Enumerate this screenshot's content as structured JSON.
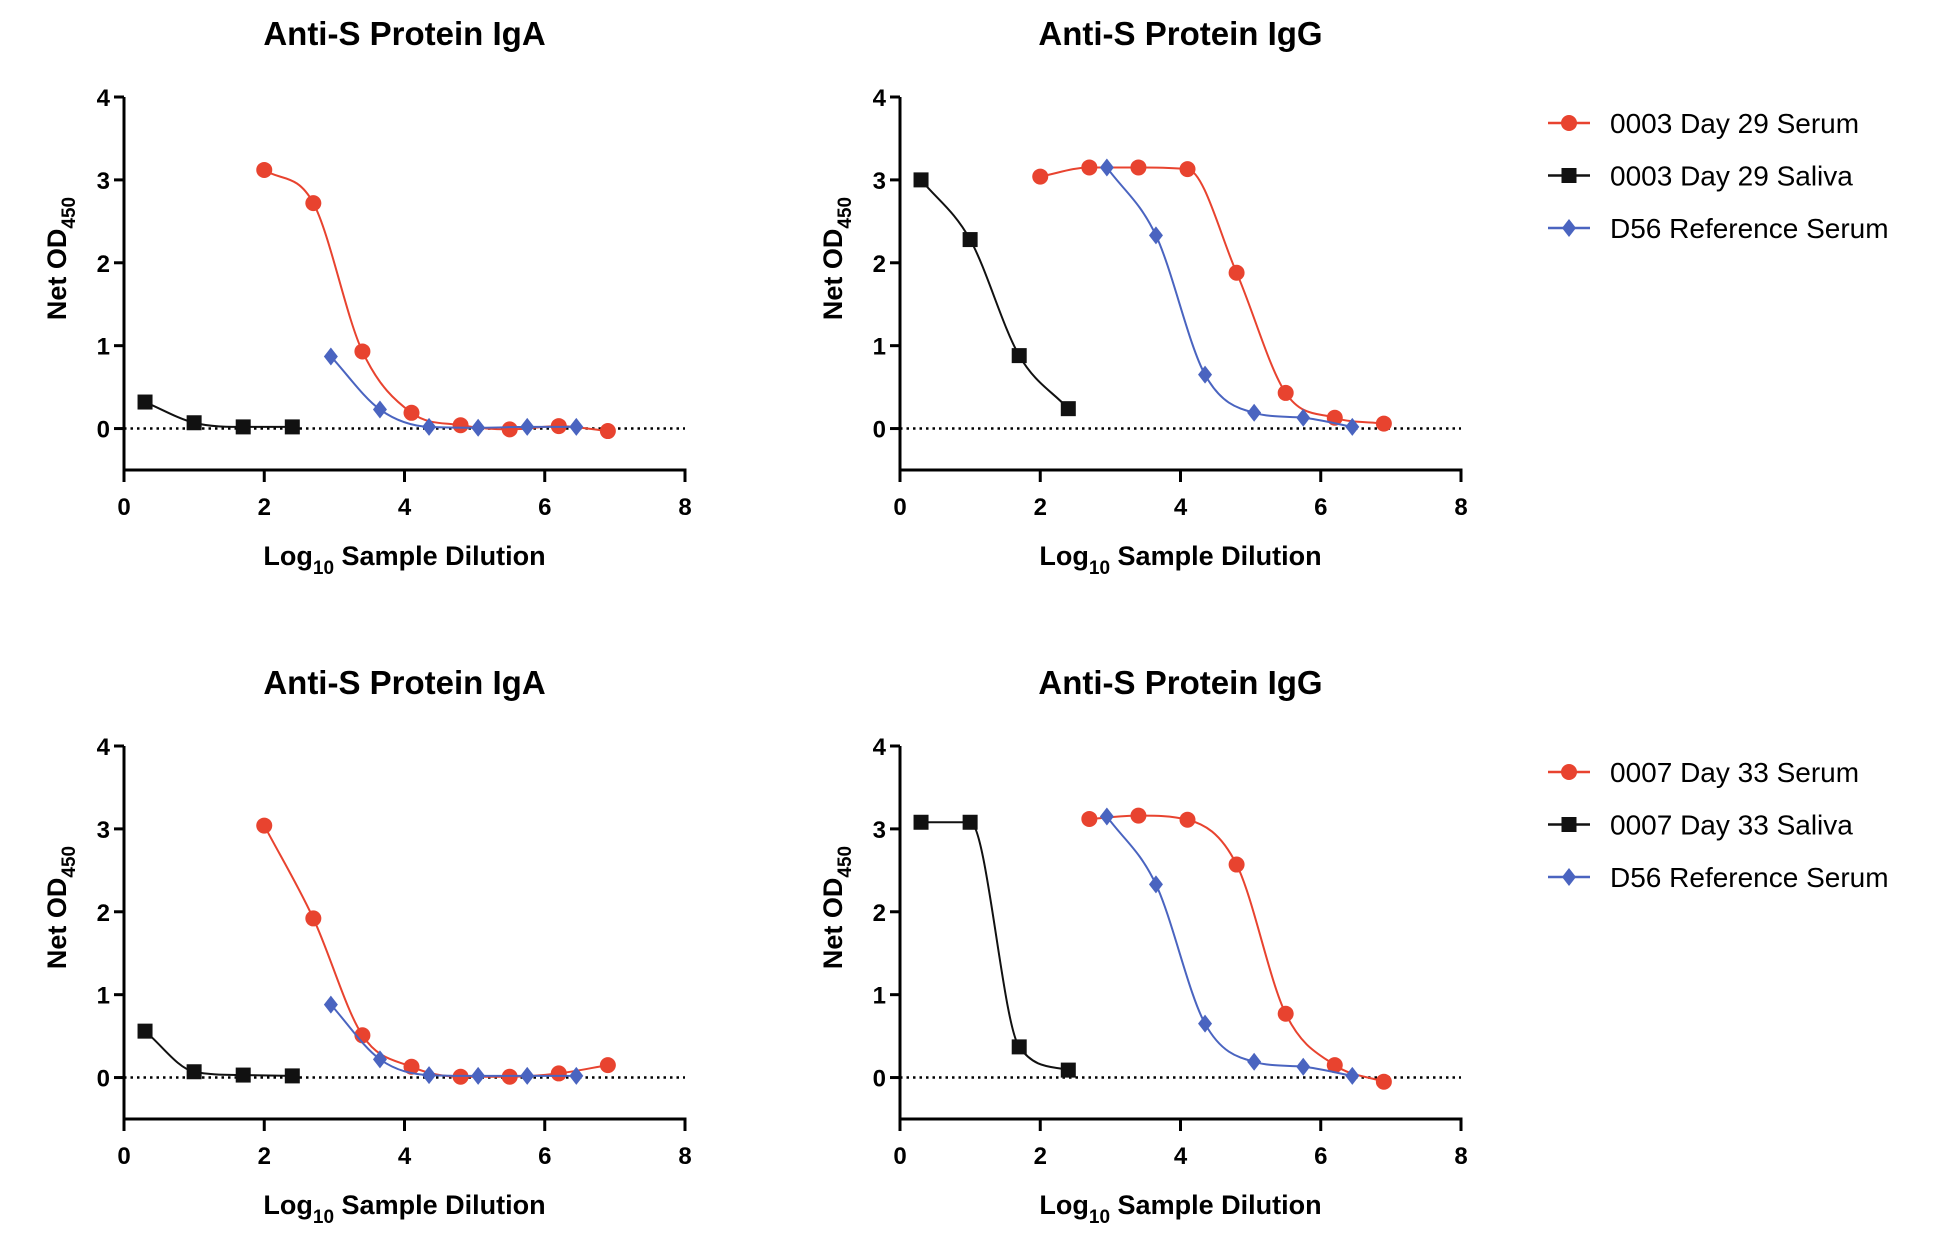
{
  "colors": {
    "serum": "#e8432f",
    "saliva": "#111111",
    "reference": "#4a64c0"
  },
  "legends": [
    {
      "entries": [
        {
          "label": "0003 Day 29 Serum",
          "marker": "circle",
          "color": "#e8432f"
        },
        {
          "label": "0003 Day 29 Saliva",
          "marker": "square",
          "color": "#111111"
        },
        {
          "label": "D56 Reference Serum",
          "marker": "diamond",
          "color": "#4a64c0"
        }
      ]
    },
    {
      "entries": [
        {
          "label": "0007 Day 33 Serum",
          "marker": "circle",
          "color": "#e8432f"
        },
        {
          "label": "0007 Day 33 Saliva",
          "marker": "square",
          "color": "#111111"
        },
        {
          "label": "D56 Reference Serum",
          "marker": "diamond",
          "color": "#4a64c0"
        }
      ]
    }
  ],
  "chart_data": [
    {
      "type": "line",
      "title": "Anti-S Protein IgA",
      "xlabel": "Log10 Sample Dilution",
      "xlabel_main": "Log",
      "xlabel_sub": "10",
      "xlabel_rest": " Sample Dilution",
      "ylabel": "Net OD450",
      "ylabel_main": "Net OD",
      "ylabel_sub": "450",
      "xlim": [
        0,
        8
      ],
      "ylim": [
        -0.5,
        4
      ],
      "xticks": [
        "0",
        "2",
        "4",
        "6",
        "8"
      ],
      "yticks": [
        "0",
        "1",
        "2",
        "3",
        "4"
      ],
      "baseline": 0,
      "grid": false,
      "legend": "right",
      "series": [
        {
          "name": "0003 Day 29 Serum",
          "marker": "circle",
          "color": "#e8432f",
          "x": [
            2,
            2.7,
            3.4,
            4.1,
            4.8,
            5.5,
            6.2,
            6.9
          ],
          "y": [
            3.12,
            2.72,
            0.93,
            0.19,
            0.04,
            -0.01,
            0.03,
            -0.03
          ]
        },
        {
          "name": "0003 Day 29 Saliva",
          "marker": "square",
          "color": "#111111",
          "x": [
            0.3,
            1,
            1.7,
            2.4
          ],
          "y": [
            0.32,
            0.07,
            0.02,
            0.02
          ]
        },
        {
          "name": "D56 Reference Serum",
          "marker": "diamond",
          "color": "#4a64c0",
          "x": [
            2.95,
            3.65,
            4.35,
            5.05,
            5.75,
            6.45
          ],
          "y": [
            0.87,
            0.23,
            0.02,
            0.01,
            0.02,
            0.02
          ]
        }
      ]
    },
    {
      "type": "line",
      "title": "Anti-S Protein IgG",
      "xlabel": "Log10 Sample Dilution",
      "xlabel_main": "Log",
      "xlabel_sub": "10",
      "xlabel_rest": " Sample Dilution",
      "ylabel": "Net OD450",
      "ylabel_main": "Net OD",
      "ylabel_sub": "450",
      "xlim": [
        0,
        8
      ],
      "ylim": [
        -0.5,
        4
      ],
      "xticks": [
        "0",
        "2",
        "4",
        "6",
        "8"
      ],
      "yticks": [
        "0",
        "1",
        "2",
        "3",
        "4"
      ],
      "baseline": 0,
      "grid": false,
      "legend": "right",
      "series": [
        {
          "name": "0003 Day 29 Serum",
          "marker": "circle",
          "color": "#e8432f",
          "x": [
            2,
            2.7,
            3.4,
            4.1,
            4.8,
            5.5,
            6.2,
            6.9
          ],
          "y": [
            3.04,
            3.15,
            3.15,
            3.13,
            1.88,
            0.43,
            0.13,
            0.06
          ]
        },
        {
          "name": "0003 Day 29 Saliva",
          "marker": "square",
          "color": "#111111",
          "x": [
            0.3,
            1,
            1.7,
            2.4
          ],
          "y": [
            3.0,
            2.28,
            0.88,
            0.24
          ]
        },
        {
          "name": "D56 Reference Serum",
          "marker": "diamond",
          "color": "#4a64c0",
          "x": [
            2.95,
            3.65,
            4.35,
            5.05,
            5.75,
            6.45
          ],
          "y": [
            3.15,
            2.33,
            0.65,
            0.19,
            0.13,
            0.02
          ]
        }
      ]
    },
    {
      "type": "line",
      "title": "Anti-S Protein IgA",
      "xlabel": "Log10 Sample Dilution",
      "xlabel_main": "Log",
      "xlabel_sub": "10",
      "xlabel_rest": " Sample Dilution",
      "ylabel": "Net OD450",
      "ylabel_main": "Net OD",
      "ylabel_sub": "450",
      "xlim": [
        0,
        8
      ],
      "ylim": [
        -0.5,
        4
      ],
      "xticks": [
        "0",
        "2",
        "4",
        "6",
        "8"
      ],
      "yticks": [
        "0",
        "1",
        "2",
        "3",
        "4"
      ],
      "baseline": 0,
      "grid": false,
      "legend": "right",
      "series": [
        {
          "name": "0007 Day 33 Serum",
          "marker": "circle",
          "color": "#e8432f",
          "x": [
            2,
            2.7,
            3.4,
            4.1,
            4.8,
            5.5,
            6.2,
            6.9
          ],
          "y": [
            3.04,
            1.92,
            0.51,
            0.13,
            0.01,
            0.01,
            0.05,
            0.15
          ]
        },
        {
          "name": "0007 Day 33 Saliva",
          "marker": "square",
          "color": "#111111",
          "x": [
            0.3,
            1,
            1.7,
            2.4
          ],
          "y": [
            0.56,
            0.07,
            0.03,
            0.02
          ]
        },
        {
          "name": "D56 Reference Serum",
          "marker": "diamond",
          "color": "#4a64c0",
          "x": [
            2.95,
            3.65,
            4.35,
            5.05,
            5.75,
            6.45
          ],
          "y": [
            0.88,
            0.22,
            0.03,
            0.02,
            0.02,
            0.02
          ]
        }
      ]
    },
    {
      "type": "line",
      "title": "Anti-S Protein IgG",
      "xlabel": "Log10 Sample Dilution",
      "xlabel_main": "Log",
      "xlabel_sub": "10",
      "xlabel_rest": " Sample Dilution",
      "ylabel": "Net OD450",
      "ylabel_main": "Net OD",
      "ylabel_sub": "450",
      "xlim": [
        0,
        8
      ],
      "ylim": [
        -0.5,
        4
      ],
      "xticks": [
        "0",
        "2",
        "4",
        "6",
        "8"
      ],
      "yticks": [
        "0",
        "1",
        "2",
        "3",
        "4"
      ],
      "baseline": 0,
      "grid": false,
      "legend": "right",
      "series": [
        {
          "name": "0007 Day 33 Serum",
          "marker": "circle",
          "color": "#e8432f",
          "x": [
            2.7,
            3.4,
            4.1,
            4.8,
            5.5,
            6.2,
            6.9
          ],
          "y": [
            3.12,
            3.16,
            3.11,
            2.57,
            0.77,
            0.15,
            -0.05
          ]
        },
        {
          "name": "0007 Day 33 Saliva",
          "marker": "square",
          "color": "#111111",
          "x": [
            0.3,
            1,
            1.7,
            2.4
          ],
          "y": [
            3.08,
            3.08,
            0.37,
            0.09
          ]
        },
        {
          "name": "D56 Reference Serum",
          "marker": "diamond",
          "color": "#4a64c0",
          "x": [
            2.95,
            3.65,
            4.35,
            5.05,
            5.75,
            6.45
          ],
          "y": [
            3.15,
            2.33,
            0.65,
            0.19,
            0.13,
            0.02
          ]
        }
      ]
    }
  ]
}
